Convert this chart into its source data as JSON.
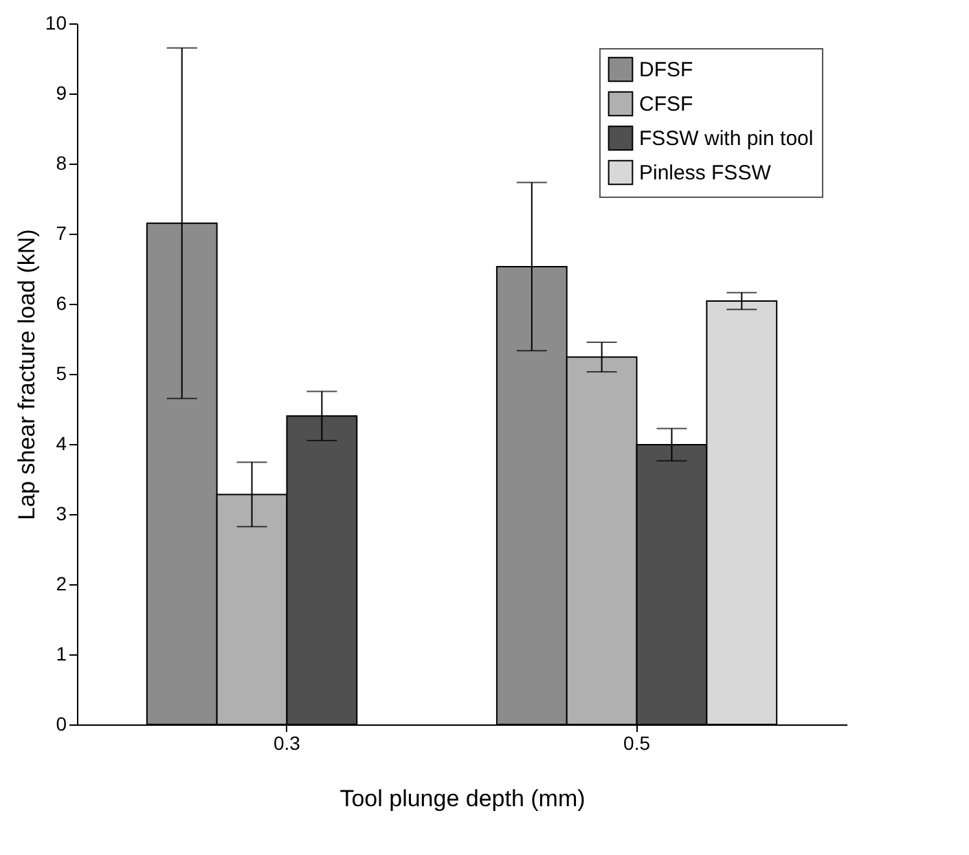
{
  "chart_data": {
    "type": "bar",
    "xlabel": "Tool plunge depth (mm)",
    "ylabel": "Lap shear fracture load (kN)",
    "categories": [
      "0.3",
      "0.5"
    ],
    "series": [
      {
        "name": "DFSF",
        "color": "#8c8c8c",
        "values": [
          7.15,
          6.53
        ],
        "errors": [
          2.5,
          1.2
        ]
      },
      {
        "name": "CFSF",
        "color": "#b0b0b0",
        "values": [
          3.28,
          5.24
        ],
        "errors": [
          0.46,
          0.21
        ]
      },
      {
        "name": "FSSW with pin tool",
        "color": "#505050",
        "values": [
          4.4,
          3.99
        ],
        "errors": [
          0.35,
          0.23
        ]
      },
      {
        "name": "Pinless FSSW",
        "color": "#d8d8d8",
        "values": [
          null,
          6.04
        ],
        "errors": [
          null,
          0.12
        ]
      }
    ],
    "ylim": [
      0,
      10
    ],
    "yticks": [
      0,
      1,
      2,
      3,
      4,
      5,
      6,
      7,
      8,
      9,
      10
    ],
    "grid": false,
    "legend": "top right"
  }
}
